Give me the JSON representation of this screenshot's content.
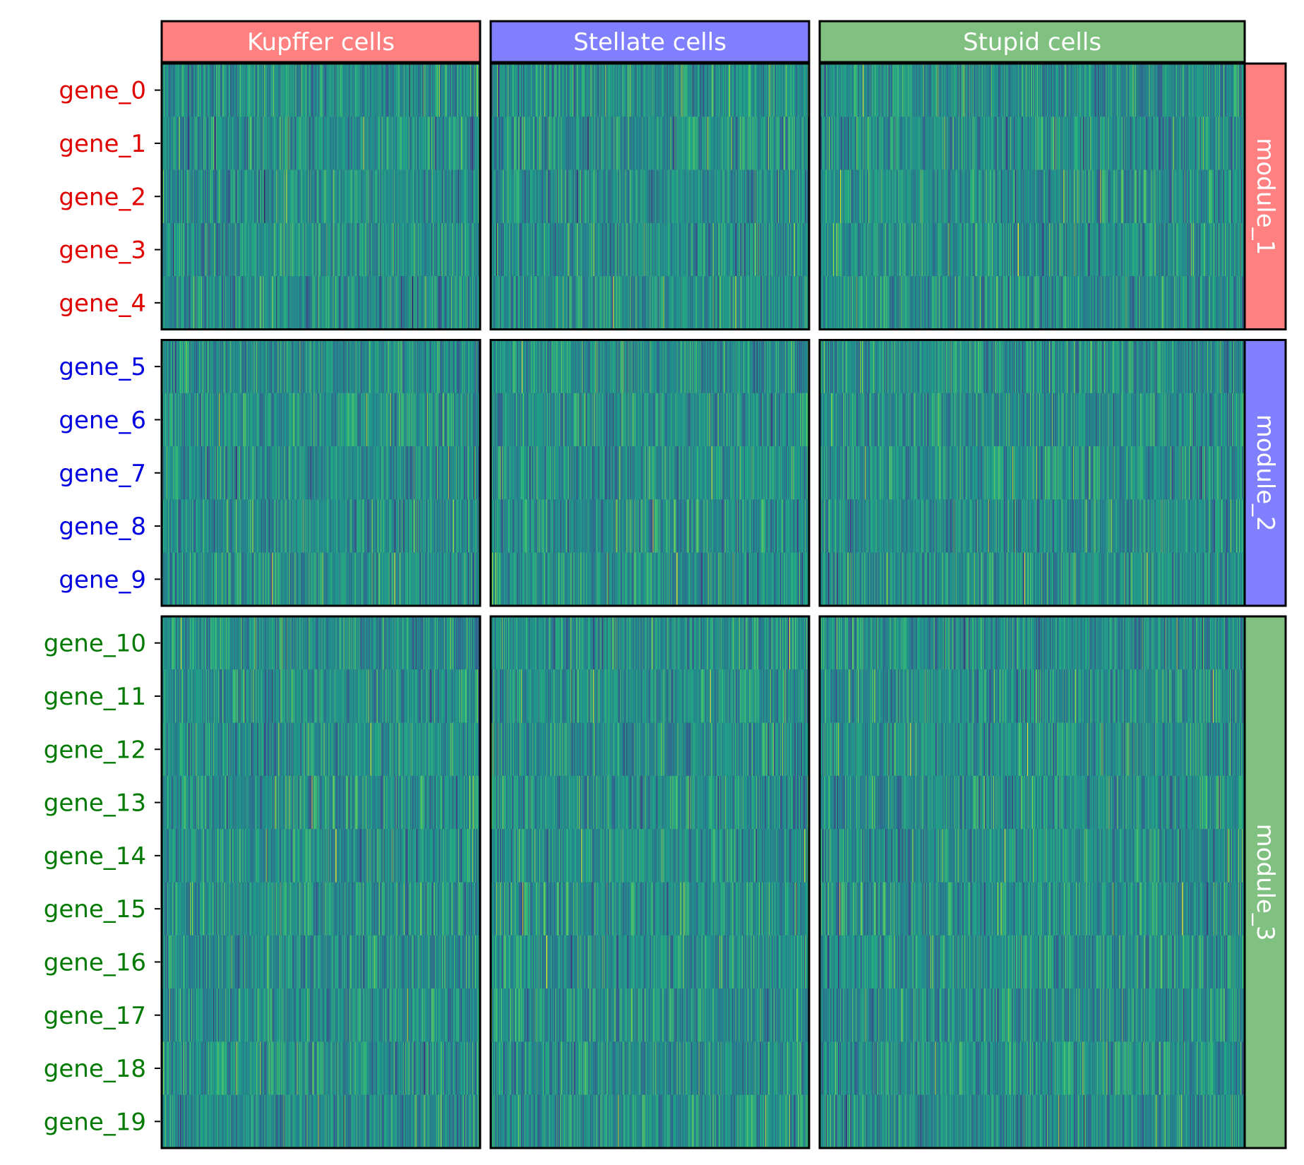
{
  "chart_data": {
    "type": "heatmap",
    "title": "",
    "xlabel": "",
    "ylabel": "",
    "column_groups": [
      {
        "label": "Kupffer cells",
        "color": "#ff8080",
        "cells": 450
      },
      {
        "label": "Stellate cells",
        "color": "#8080ff",
        "cells": 450
      },
      {
        "label": "Stupid cells",
        "color": "#80c080",
        "cells": 600
      }
    ],
    "row_groups": [
      {
        "label": "module_1",
        "color": "#ff8080",
        "label_color": "#e00000",
        "genes": [
          "gene_0",
          "gene_1",
          "gene_2",
          "gene_3",
          "gene_4"
        ]
      },
      {
        "label": "module_2",
        "color": "#8080ff",
        "label_color": "#0000e0",
        "genes": [
          "gene_5",
          "gene_6",
          "gene_7",
          "gene_8",
          "gene_9"
        ]
      },
      {
        "label": "module_3",
        "color": "#80c080",
        "label_color": "#007a00",
        "genes": [
          "gene_10",
          "gene_11",
          "gene_12",
          "gene_13",
          "gene_14",
          "gene_15",
          "gene_16",
          "gene_17",
          "gene_18",
          "gene_19"
        ]
      }
    ],
    "value_distribution": "random noise, approximately normal",
    "colormap": "viridis",
    "colorbar": false,
    "grid": false
  }
}
